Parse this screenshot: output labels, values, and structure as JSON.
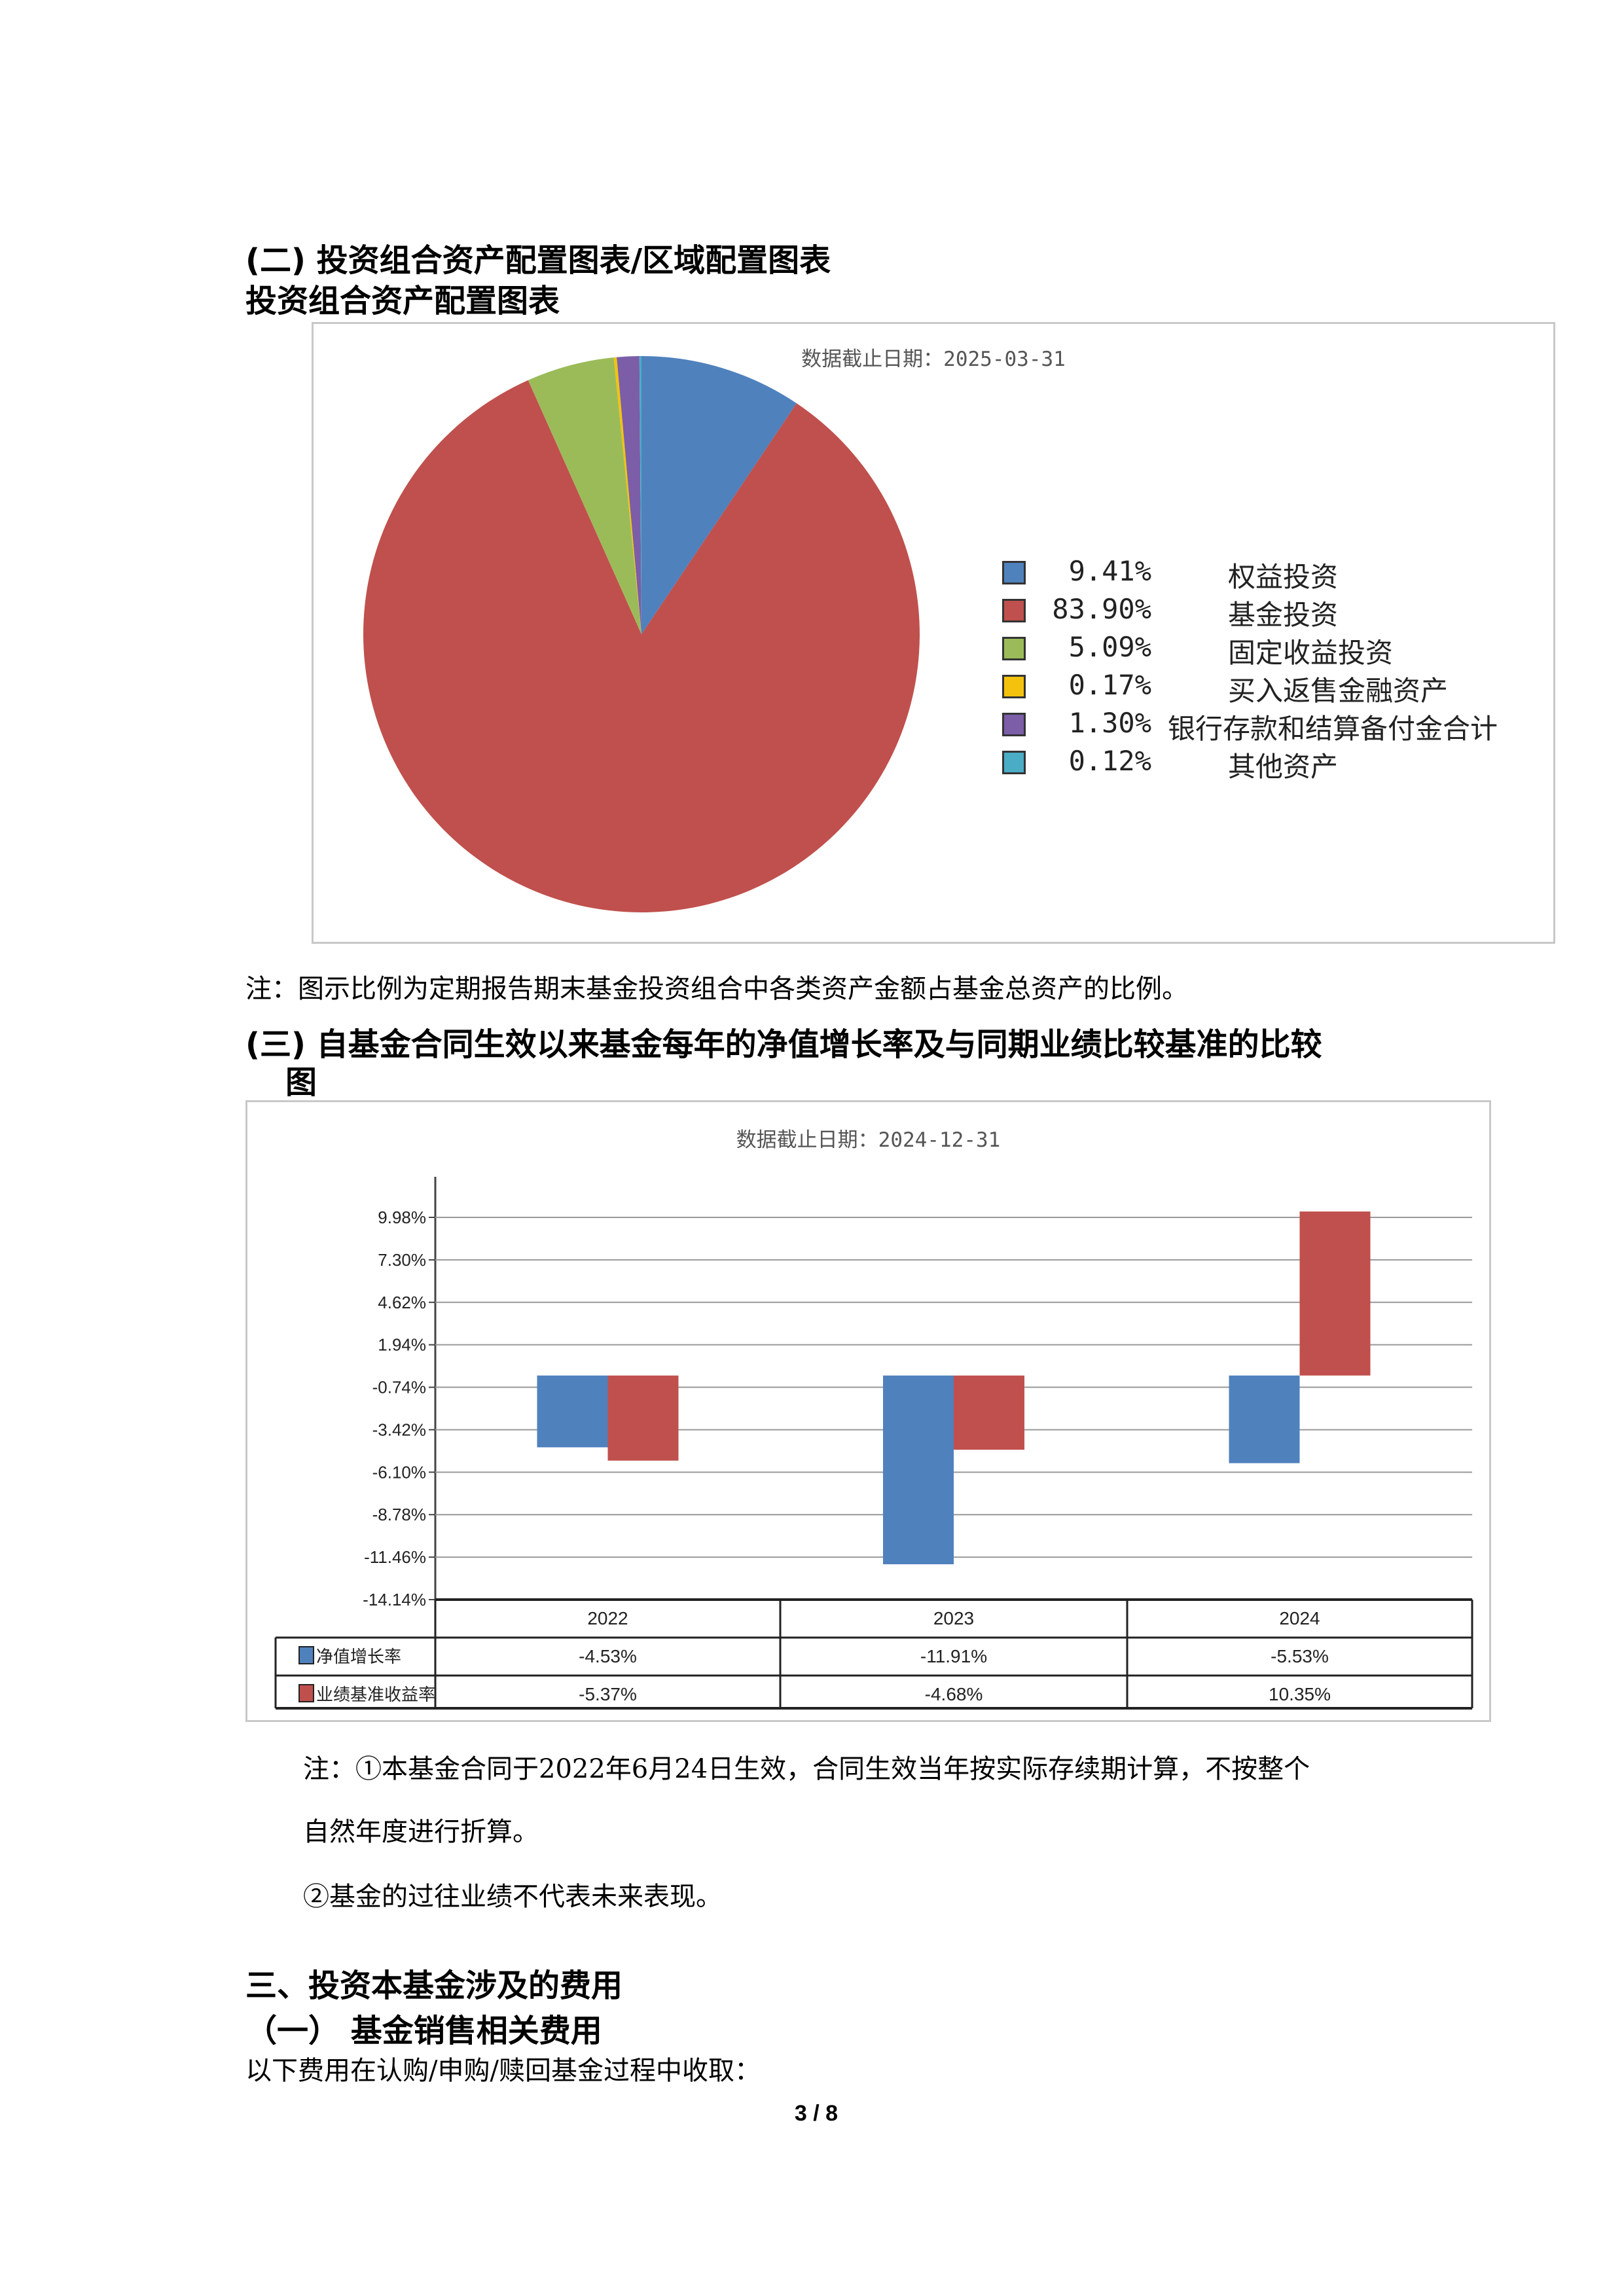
{
  "section2_heading": "(二) 投资组合资产配置图表/区域配置图表",
  "pie_title": "投资组合资产配置图表",
  "pie_chart": {
    "type": "pie",
    "date_label": "数据截止日期：2025-03-31",
    "slices": [
      {
        "label": "权益投资",
        "pct_text": "9.41%",
        "value": 9.41,
        "color": "#4f81bd"
      },
      {
        "label": "基金投资",
        "pct_text": "83.90%",
        "value": 83.9,
        "color": "#c0504d"
      },
      {
        "label": "固定收益投资",
        "pct_text": "5.09%",
        "value": 5.09,
        "color": "#9bbb59"
      },
      {
        "label": "买入返售金融资产",
        "pct_text": "0.17%",
        "value": 0.17,
        "color": "#f4c20d"
      },
      {
        "label": "银行存款和结算备付金合计",
        "pct_text": "1.30%",
        "value": 1.3,
        "color": "#7b5ea7"
      },
      {
        "label": "其他资产",
        "pct_text": "0.12%",
        "value": 0.12,
        "color": "#4bacc6"
      }
    ],
    "legend_position": "right"
  },
  "pie_note": "注：图示比例为定期报告期末基金投资组合中各类资产金额占基金总资产的比例。",
  "section3_heading_line1": "(三) 自基金合同生效以来基金每年的净值增长率及与同期业绩比较基准的比较",
  "section3_heading_line2": "图",
  "chart_data": {
    "type": "bar",
    "date_label": "数据截止日期：2024-12-31",
    "categories": [
      "2022",
      "2023",
      "2024"
    ],
    "yticks": [
      "9.98%",
      "7.30%",
      "4.62%",
      "1.94%",
      "-0.74%",
      "-3.42%",
      "-6.10%",
      "-8.78%",
      "-11.46%",
      "-14.14%"
    ],
    "ytick_values": [
      9.98,
      7.3,
      4.62,
      1.94,
      -0.74,
      -3.42,
      -6.1,
      -8.78,
      -11.46,
      -14.14
    ],
    "ylim": [
      -14.14,
      9.98
    ],
    "grid": true,
    "series": [
      {
        "name": "净值增长率",
        "color": "#4f81bd",
        "values": [
          -4.53,
          -11.91,
          -5.53
        ],
        "labels": [
          "-4.53%",
          "-11.91%",
          "-5.53%"
        ]
      },
      {
        "name": "业绩基准收益率",
        "color": "#c0504d",
        "values": [
          -5.37,
          -4.68,
          10.35
        ],
        "labels": [
          "-5.37%",
          "-4.68%",
          "10.35%"
        ]
      }
    ]
  },
  "bar_notes": [
    "注：①本基金合同于2022年6月24日生效，合同生效当年按实际存续期计算，不按整个",
    "自然年度进行折算。",
    "②基金的过往业绩不代表未来表现。"
  ],
  "section_three_title": "三、投资本基金涉及的费用",
  "subsection_one_title": "（一） 基金销售相关费用",
  "fees_intro": "以下费用在认购/申购/赎回基金过程中收取：",
  "page_number": "3 / 8"
}
